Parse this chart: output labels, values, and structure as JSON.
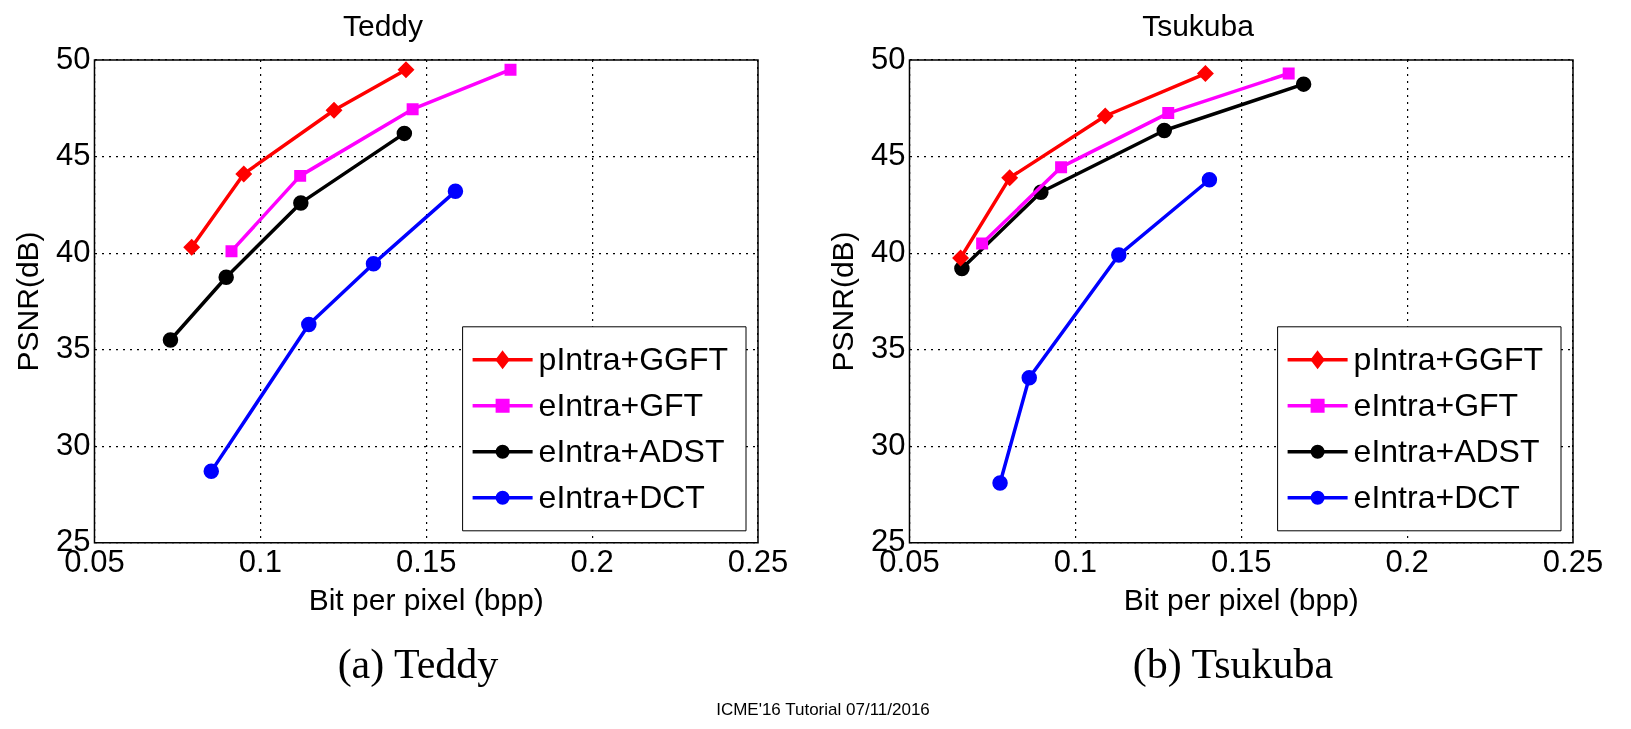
{
  "chart_data": [
    {
      "type": "line",
      "title": "Teddy",
      "xlabel": "Bit per pixel (bpp)",
      "ylabel": "PSNR(dB)",
      "xlim": [
        0.05,
        0.25
      ],
      "xticks": [
        0.05,
        0.1,
        0.15,
        0.2,
        0.25
      ],
      "ylim": [
        25,
        50
      ],
      "yticks": [
        25,
        30,
        35,
        40,
        45,
        50
      ],
      "grid": true,
      "legend": "bottom right",
      "annotations": [
        "(a) Teddy"
      ],
      "series": [
        {
          "name": "pIntra+GGFT",
          "color": "#ff0000",
          "marker": "diamond",
          "x": [
            0.0793,
            0.095,
            0.1222,
            0.1439
          ],
          "values": [
            40.3,
            44.1,
            47.4,
            49.5
          ]
        },
        {
          "name": "eIntra+GFT",
          "color": "#ff00ff",
          "marker": "square",
          "x": [
            0.0913,
            0.112,
            0.1459,
            0.1754
          ],
          "values": [
            40.1,
            44.0,
            47.45,
            49.5
          ]
        },
        {
          "name": "eIntra+ADST",
          "color": "#000000",
          "marker": "circle",
          "x": [
            0.0729,
            0.0897,
            0.1122,
            0.1434
          ],
          "values": [
            35.5,
            38.75,
            42.6,
            46.2
          ]
        },
        {
          "name": "eIntra+DCT",
          "color": "#0000ff",
          "marker": "circle",
          "x": [
            0.0852,
            0.1146,
            0.1341,
            0.1588
          ],
          "values": [
            28.7,
            36.3,
            39.45,
            43.2
          ]
        }
      ]
    },
    {
      "type": "line",
      "title": "Tsukuba",
      "xlabel": "Bit per pixel (bpp)",
      "ylabel": "PSNR(dB)",
      "xlim": [
        0.05,
        0.25
      ],
      "xticks": [
        0.05,
        0.1,
        0.15,
        0.2,
        0.25
      ],
      "ylim": [
        25,
        50
      ],
      "yticks": [
        25,
        30,
        35,
        40,
        45,
        50
      ],
      "grid": true,
      "legend": "bottom right",
      "annotations": [
        "(b) Tsukuba",
        "ICME'16 Tutorial 07/11/2016"
      ],
      "series": [
        {
          "name": "pIntra+GGFT",
          "color": "#ff0000",
          "marker": "diamond",
          "x": [
            0.0654,
            0.0802,
            0.109,
            0.1392
          ],
          "values": [
            39.75,
            43.9,
            47.1,
            49.3
          ]
        },
        {
          "name": "eIntra+GFT",
          "color": "#ff00ff",
          "marker": "square",
          "x": [
            0.0719,
            0.0957,
            0.128,
            0.1643
          ],
          "values": [
            40.5,
            44.45,
            47.25,
            49.3
          ]
        },
        {
          "name": "eIntra+ADST",
          "color": "#000000",
          "marker": "circle",
          "x": [
            0.0658,
            0.0896,
            0.1268,
            0.1688
          ],
          "values": [
            39.2,
            43.15,
            46.35,
            48.75
          ]
        },
        {
          "name": "eIntra+DCT",
          "color": "#0000ff",
          "marker": "circle",
          "x": [
            0.0773,
            0.0861,
            0.1131,
            0.1404
          ],
          "values": [
            28.1,
            33.55,
            39.9,
            43.8
          ]
        }
      ]
    }
  ]
}
